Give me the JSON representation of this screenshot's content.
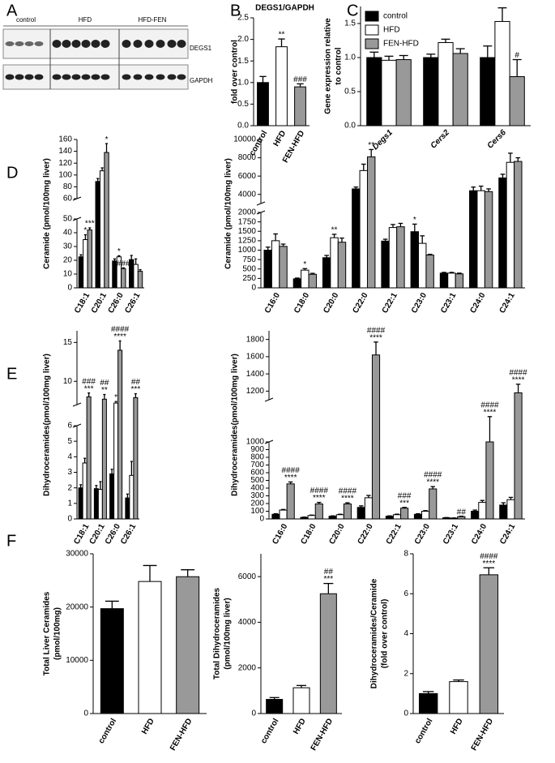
{
  "panel_labels": [
    "A",
    "B",
    "C",
    "D",
    "E",
    "F"
  ],
  "blot": {
    "groups": [
      "control",
      "HFD",
      "HFD-FEN"
    ],
    "proteins": [
      "DEGS1",
      "GAPDH"
    ]
  },
  "chart_data": [
    {
      "type": "bar",
      "title": "DEGS1/GAPDH",
      "ylabel": "fold over control",
      "categories": [
        "control",
        "HFD",
        "FEN-HFD"
      ],
      "values": [
        1.0,
        1.83,
        0.9
      ],
      "errors": [
        0.14,
        0.18,
        0.07
      ],
      "colors": [
        "#000000",
        "#ffffff",
        "#999999"
      ],
      "annotations": [
        null,
        [
          "**"
        ],
        [
          "###"
        ]
      ],
      "ylim": [
        0,
        2.5
      ],
      "yticks": [
        {
          "value": 0,
          "label": "0.0"
        },
        0.5,
        {
          "value": 1,
          "label": "1.0"
        },
        1.5,
        {
          "value": 2,
          "label": "2.0"
        },
        2.5
      ]
    },
    {
      "type": "bar",
      "ylabel": [
        "Gene expression relative",
        "to control"
      ],
      "legend": "upper left",
      "category_font": "italic",
      "categories": [
        "Degs1",
        "Cers2",
        "Cers6"
      ],
      "series": [
        {
          "name": "control",
          "color": "#000000",
          "values": [
            1.0,
            1.0,
            1.0
          ],
          "errors": [
            0.08,
            0.05,
            0.17
          ]
        },
        {
          "name": "HFD",
          "color": "#ffffff",
          "values": [
            0.96,
            1.22,
            1.53
          ],
          "errors": [
            0.06,
            0.05,
            0.2
          ]
        },
        {
          "name": "FEN-HFD",
          "color": "#999999",
          "values": [
            0.97,
            1.06,
            0.72
          ],
          "errors": [
            0.06,
            0.07,
            0.25
          ],
          "annotations": [
            null,
            null,
            [
              "#"
            ]
          ]
        }
      ],
      "ylim": [
        0,
        1.75
      ],
      "yticks": [
        {
          "value": 0,
          "label": "0.0"
        },
        0.5,
        {
          "value": 1,
          "label": "1.0"
        },
        1.5
      ]
    },
    {
      "type": "bar",
      "ylabel": "Ceramide (pmol/100mg liver)",
      "categories": [
        "C18:1",
        "C20:1",
        "C26:0",
        "C26:1"
      ],
      "series": [
        {
          "name": "control",
          "color": "#000000",
          "values": [
            22.5,
            89,
            19.5,
            20.5
          ],
          "errors": [
            1.5,
            5,
            1.5,
            3
          ]
        },
        {
          "name": "HFD",
          "color": "#ffffff",
          "values": [
            35,
            107,
            22.5,
            17
          ],
          "errors": [
            3.5,
            5,
            0.8,
            4
          ],
          "annotations": [
            [
              "*"
            ],
            null,
            [
              "*"
            ],
            null
          ]
        },
        {
          "name": "FEN-HFD",
          "color": "#999999",
          "values": [
            42,
            138,
            14,
            12
          ],
          "errors": [
            1.5,
            15,
            0.5,
            1.2
          ],
          "annotations": [
            [
              "***"
            ],
            [
              "*"
            ],
            [
              "###"
            ],
            null
          ]
        }
      ],
      "ylim": [
        0,
        160
      ],
      "y_break": [
        50,
        60
      ],
      "yticks": [
        0,
        10,
        20,
        30,
        40,
        50,
        60,
        80,
        100,
        120,
        140,
        160
      ]
    },
    {
      "type": "bar",
      "ylabel": "Ceramide (pmol/100mg liver)",
      "categories": [
        "C16:0",
        "C18:0",
        "C20:0",
        "C22:0",
        "C22:1",
        "C23:0",
        "C23:1",
        "C24:0",
        "C24:1"
      ],
      "series": [
        {
          "name": "control",
          "color": "#000000",
          "values": [
            1000,
            240,
            800,
            4600,
            1240,
            1490,
            390,
            4400,
            5800
          ],
          "errors": [
            80,
            20,
            60,
            200,
            50,
            200,
            20,
            400,
            400
          ],
          "annotations": [
            null,
            null,
            null,
            null,
            null,
            [
              "*"
            ],
            null,
            null,
            null
          ]
        },
        {
          "name": "HFD",
          "color": "#ffffff",
          "values": [
            1250,
            470,
            1330,
            6600,
            1600,
            1180,
            390,
            4400,
            7500
          ],
          "errors": [
            180,
            40,
            90,
            700,
            80,
            200,
            20,
            500,
            1000
          ],
          "annotations": [
            null,
            [
              "*"
            ],
            [
              "**"
            ],
            null,
            null,
            null,
            null,
            null,
            null
          ]
        },
        {
          "name": "FEN-HFD",
          "color": "#999999",
          "values": [
            1100,
            360,
            1210,
            8100,
            1620,
            870,
            370,
            4300,
            7600
          ],
          "errors": [
            60,
            25,
            110,
            800,
            90,
            20,
            20,
            300,
            400
          ],
          "annotations": [
            null,
            null,
            null,
            [
              "**"
            ],
            null,
            null,
            null,
            null,
            null
          ]
        }
      ],
      "ylim": [
        0,
        10000
      ],
      "y_break": [
        2000,
        3000
      ],
      "yticks": [
        0,
        250,
        500,
        750,
        1000,
        1250,
        1500,
        1750,
        2000,
        4000,
        6000,
        8000,
        10000
      ]
    },
    {
      "type": "bar",
      "ylabel": "Dihydroceramides(pmol/100mg liver)",
      "categories": [
        "C18:1",
        "C20:1",
        "C26:0",
        "C26:1"
      ],
      "series": [
        {
          "name": "control",
          "color": "#000000",
          "values": [
            2.0,
            1.95,
            2.9,
            1.35
          ],
          "errors": [
            0.2,
            0.2,
            0.3,
            0.25
          ]
        },
        {
          "name": "HFD",
          "color": "#ffffff",
          "values": [
            3.6,
            1.9,
            7.2,
            2.8
          ],
          "errors": [
            0.3,
            0.5,
            0.2,
            0.9
          ],
          "annotations": [
            null,
            null,
            [
              "*"
            ],
            null
          ]
        },
        {
          "name": "FEN-HFD",
          "color": "#999999",
          "values": [
            8.0,
            7.7,
            14,
            7.9
          ],
          "errors": [
            0.5,
            0.6,
            1.2,
            0.5
          ],
          "annotations": [
            [
              "###",
              "***"
            ],
            [
              "##",
              "**"
            ],
            [
              "####",
              "****"
            ],
            [
              "##",
              "***"
            ]
          ]
        }
      ],
      "ylim": [
        0,
        16.5
      ],
      "y_break": [
        6,
        7
      ],
      "yticks": [
        0,
        1,
        2,
        3,
        4,
        5,
        6,
        10,
        15
      ]
    },
    {
      "type": "bar",
      "ylabel": "Dihydroceramides(pmol/100mg liver)",
      "categories": [
        "C16:0",
        "C18:0",
        "C20:0",
        "C22:0",
        "C22:1",
        "C23:0",
        "C23:1",
        "C24:0",
        "C24:1"
      ],
      "series": [
        {
          "name": "control",
          "color": "#000000",
          "values": [
            60,
            20,
            35,
            150,
            35,
            60,
            15,
            100,
            180
          ],
          "errors": [
            8,
            4,
            5,
            20,
            5,
            8,
            3,
            15,
            30
          ]
        },
        {
          "name": "HFD",
          "color": "#ffffff",
          "values": [
            115,
            45,
            55,
            275,
            55,
            100,
            10,
            215,
            250
          ],
          "errors": [
            8,
            5,
            6,
            30,
            7,
            8,
            3,
            25,
            30
          ]
        },
        {
          "name": "FEN-HFD",
          "color": "#999999",
          "values": [
            455,
            195,
            195,
            1620,
            140,
            390,
            30,
            1000,
            1180
          ],
          "errors": [
            25,
            20,
            15,
            150,
            10,
            30,
            5,
            60,
            100
          ],
          "annotations": [
            [
              "####",
              "****"
            ],
            [
              "####",
              "****"
            ],
            [
              "####",
              "****"
            ],
            [
              "####",
              "****"
            ],
            [
              "###",
              "***"
            ],
            [
              "####",
              "****"
            ],
            [
              "##"
            ],
            [
              "####",
              "****"
            ],
            [
              "####",
              "****"
            ]
          ]
        }
      ],
      "ylim": [
        0,
        1900
      ],
      "y_break": [
        1000,
        1100
      ],
      "yticks": [
        0,
        100,
        200,
        300,
        400,
        500,
        600,
        700,
        800,
        900,
        1000,
        1200,
        1400,
        1600,
        1800
      ]
    },
    {
      "type": "bar",
      "ylabel": [
        "Total Liver Ceramides",
        "(pmol/100mg)"
      ],
      "categories": [
        "control",
        "HFD",
        "FEN-HFD"
      ],
      "values": [
        19700,
        24800,
        25700
      ],
      "errors": [
        1400,
        3000,
        1300
      ],
      "colors": [
        "#000000",
        "#ffffff",
        "#999999"
      ],
      "ylim": [
        0,
        30000
      ],
      "yticks": [
        0,
        10000,
        20000,
        30000
      ]
    },
    {
      "type": "bar",
      "ylabel": [
        "Total Dihydroceramides",
        "(pmol/100mg liver)"
      ],
      "categories": [
        "control",
        "HFD",
        "FEN-HFD"
      ],
      "values": [
        620,
        1130,
        5250
      ],
      "errors": [
        80,
        100,
        450
      ],
      "colors": [
        "#000000",
        "#ffffff",
        "#999999"
      ],
      "annotations": [
        null,
        null,
        [
          "##",
          "***"
        ]
      ],
      "ylim": [
        0,
        7000
      ],
      "yticks": [
        0,
        2000,
        4000,
        6000
      ]
    },
    {
      "type": "bar",
      "ylabel": [
        "Dihydroceramides/Ceramide",
        "(fold over control)"
      ],
      "categories": [
        "control",
        "HFD",
        "FEN-HFD"
      ],
      "values": [
        1.0,
        1.6,
        6.95
      ],
      "errors": [
        0.1,
        0.08,
        0.35
      ],
      "colors": [
        "#000000",
        "#ffffff",
        "#999999"
      ],
      "annotations": [
        null,
        null,
        [
          "####",
          "****"
        ]
      ],
      "ylim": [
        0,
        8
      ],
      "yticks": [
        0,
        2,
        4,
        6,
        8
      ]
    }
  ]
}
